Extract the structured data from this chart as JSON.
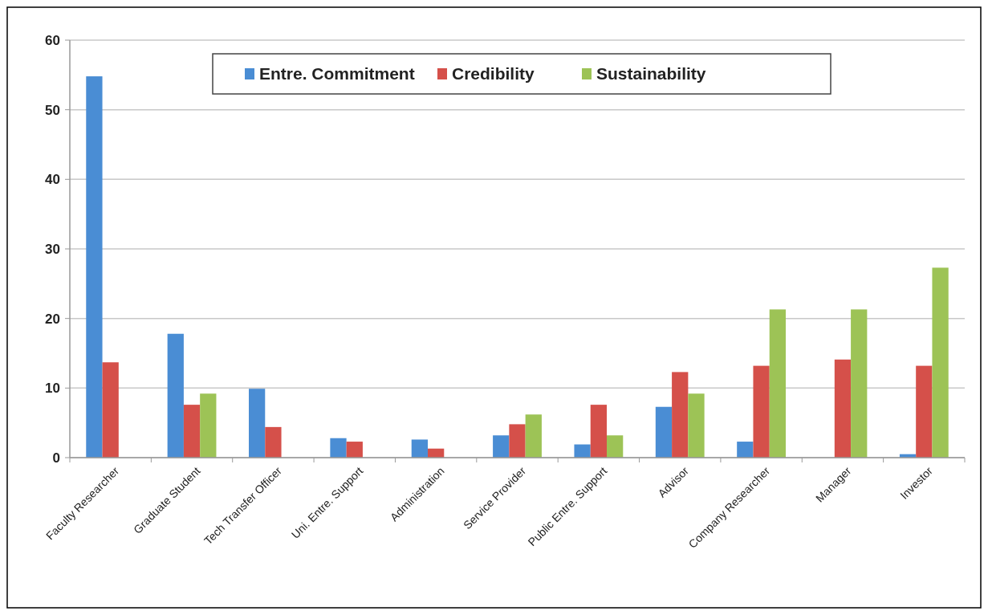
{
  "chart_data": {
    "type": "bar",
    "categories": [
      "Faculty Researcher",
      "Graduate Student",
      "Tech Transfer Officer",
      "Uni. Entre. Support",
      "Administration",
      "Service Provider",
      "Public Entre. Support",
      "Advisor",
      "Company Researcher",
      "Manager",
      "Investor"
    ],
    "series": [
      {
        "name": "Entre. Commitment",
        "color": "#4a8dd4",
        "values": [
          54.8,
          17.8,
          9.9,
          2.8,
          2.6,
          3.2,
          1.9,
          7.3,
          2.3,
          null,
          0.5
        ]
      },
      {
        "name": "Credibility",
        "color": "#d5504a",
        "values": [
          13.7,
          7.6,
          4.4,
          2.3,
          1.3,
          4.8,
          7.6,
          12.3,
          13.2,
          14.1,
          13.2
        ]
      },
      {
        "name": "Sustainability",
        "color": "#9dc356",
        "values": [
          null,
          9.2,
          null,
          null,
          null,
          6.2,
          3.2,
          9.2,
          21.3,
          21.3,
          27.3
        ]
      }
    ],
    "ylim": [
      0,
      60
    ],
    "yticks": [
      0,
      10,
      20,
      30,
      40,
      50,
      60
    ],
    "grid": "y",
    "legend": "top"
  }
}
